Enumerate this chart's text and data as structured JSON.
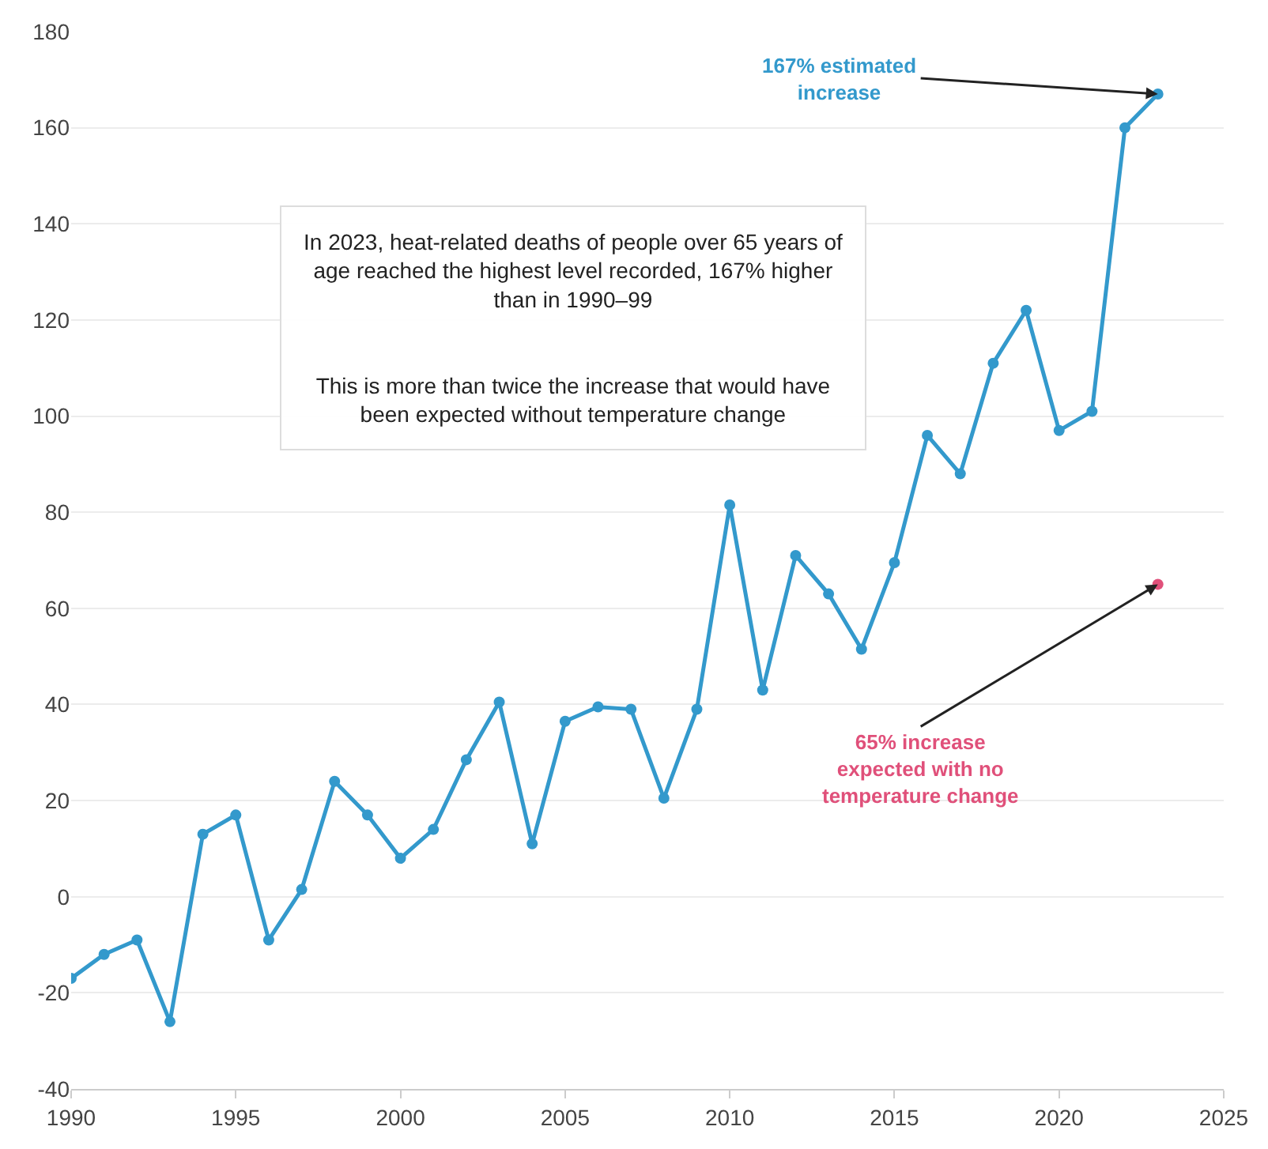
{
  "chart_data": {
    "type": "line",
    "x": [
      1990,
      1991,
      1992,
      1993,
      1994,
      1995,
      1996,
      1997,
      1998,
      1999,
      2000,
      2001,
      2002,
      2003,
      2004,
      2005,
      2006,
      2007,
      2008,
      2009,
      2010,
      2011,
      2012,
      2013,
      2014,
      2015,
      2016,
      2017,
      2018,
      2019,
      2020,
      2021,
      2022,
      2023
    ],
    "series": [
      {
        "color": "#3399cc",
        "values": [
          -17,
          -12,
          -9,
          -26,
          13,
          17,
          -9,
          1.5,
          24,
          17,
          8,
          14,
          28.5,
          40.5,
          11,
          36.5,
          39.5,
          39,
          20.5,
          39,
          81.5,
          43,
          71,
          63,
          51.5,
          69.5,
          96,
          88,
          111,
          122,
          97,
          101,
          160,
          167
        ]
      },
      {
        "type": "scatter",
        "color": "#e0507a",
        "x": [
          2023
        ],
        "values": [
          65
        ]
      }
    ],
    "xlim": [
      1990,
      2025
    ],
    "xticks": [
      1990,
      1995,
      2000,
      2005,
      2010,
      2015,
      2020,
      2025
    ],
    "ylim": [
      -40,
      180
    ],
    "yticks": [
      -40,
      -20,
      0,
      20,
      40,
      60,
      80,
      100,
      120,
      140,
      160,
      180
    ],
    "grid": "y",
    "marker": "circle",
    "line_style": "solid",
    "annotations": [
      {
        "text": "167% estimated\nincrease",
        "x": 2023,
        "y": 167
      },
      {
        "text": "65% increase\nexpected with no\ntemperature change",
        "x": 2023,
        "y": 65
      },
      "In 2023, heat-related deaths of people over 65 years of\nage reached the highest level recorded, 167% higher\nthan in 1990–99\n\n\nThis is more than twice the increase that would have\nbeen expected without temperature change"
    ]
  }
}
